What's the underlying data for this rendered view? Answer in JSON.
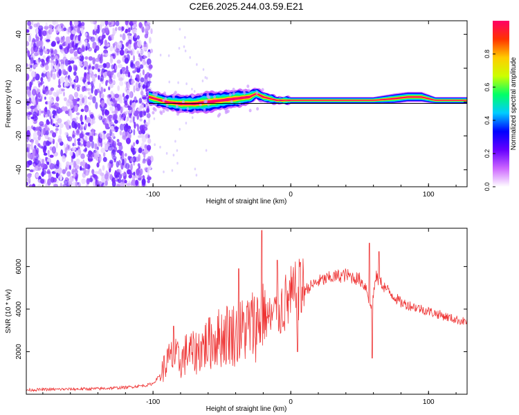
{
  "title": "C2E6.2025.244.03.59.E21",
  "chart_data": [
    {
      "type": "heatmap",
      "name": "spectrogram",
      "xlabel": "Height of straight line (km)",
      "ylabel": "Frequency (Hz)",
      "xlim": [
        -192,
        128
      ],
      "ylim": [
        -50,
        48
      ],
      "xticks": [
        -100,
        0,
        100
      ],
      "xtick_labels": [
        "-100",
        "0",
        "100"
      ],
      "yticks": [
        -40,
        -20,
        0,
        20,
        40
      ],
      "ytick_labels": [
        "-40",
        "-20",
        "0",
        "20",
        "40"
      ],
      "noise_region_x": [
        -192,
        -100
      ],
      "carrier_line_y": 0,
      "signal_band": {
        "x": [
          -103,
          -90,
          -80,
          -70,
          -60,
          -50,
          -40,
          -30,
          -25,
          -20,
          -10,
          0,
          20,
          40,
          60,
          75,
          85,
          95,
          105,
          128
        ],
        "center_hz": [
          3,
          0,
          -1,
          -1,
          0,
          1,
          2,
          3,
          5,
          3,
          1,
          1,
          1,
          1,
          1,
          2,
          3,
          3,
          1,
          1
        ],
        "halfwidth_hz": [
          4,
          4,
          5,
          5,
          6,
          5,
          5,
          4,
          3,
          3,
          2,
          2,
          2,
          2,
          2,
          3,
          3,
          3,
          2,
          2
        ]
      },
      "colorbar": {
        "label": "Normalized spectral amplitude",
        "range": [
          0,
          1
        ],
        "ticks": [
          0.0,
          0.2,
          0.4,
          0.6,
          0.8
        ],
        "tick_labels": [
          "0.0",
          "0.2",
          "0.4",
          "0.6",
          "0.8"
        ],
        "colors": [
          "#ffffff",
          "#cc66ff",
          "#6600ff",
          "#0000ff",
          "#00ccff",
          "#00ff66",
          "#ccff00",
          "#ffcc00",
          "#ff3300",
          "#ff0066"
        ]
      }
    },
    {
      "type": "line",
      "name": "snr",
      "xlabel": "Height of straight line (km)",
      "ylabel": "SNR (10 * v/v)",
      "xlim": [
        -192,
        128
      ],
      "ylim": [
        0,
        7800
      ],
      "xticks": [
        -100,
        0,
        100
      ],
      "xtick_labels": [
        "-100",
        "0",
        "100"
      ],
      "yticks": [
        2000,
        4000,
        6000
      ],
      "ytick_labels": [
        "2000",
        "4000",
        "6000"
      ],
      "color": "#ee3333",
      "series": [
        {
          "name": "SNR",
          "x": [
            -192,
            -180,
            -160,
            -140,
            -120,
            -105,
            -100,
            -95,
            -90,
            -85,
            -80,
            -75,
            -70,
            -65,
            -60,
            -55,
            -50,
            -45,
            -40,
            -35,
            -30,
            -25,
            -20,
            -15,
            -10,
            -5,
            0,
            10,
            20,
            30,
            40,
            50,
            55,
            58,
            62,
            70,
            80,
            90,
            100,
            110,
            120,
            128
          ],
          "values": [
            200,
            220,
            240,
            260,
            320,
            420,
            500,
            900,
            1500,
            1800,
            1500,
            2000,
            1900,
            2200,
            2400,
            2600,
            2700,
            2900,
            2800,
            3000,
            3200,
            3300,
            3800,
            3500,
            3800,
            4200,
            4500,
            4900,
            5300,
            5500,
            5600,
            5400,
            5000,
            4000,
            5500,
            4900,
            4300,
            4100,
            3900,
            3700,
            3500,
            3400
          ],
          "spikes": [
            {
              "x": -85,
              "value": 3200
            },
            {
              "x": -59,
              "value": 3600
            },
            {
              "x": -38,
              "value": 5900
            },
            {
              "x": -21,
              "value": 7700
            },
            {
              "x": -10,
              "value": 6300
            },
            {
              "x": 7,
              "value": 6200
            },
            {
              "x": 57,
              "value": 7100
            },
            {
              "x": 64,
              "value": 6700
            },
            {
              "x": 59,
              "value": 1700
            },
            {
              "x": 5,
              "value": 2000
            }
          ]
        }
      ]
    }
  ]
}
